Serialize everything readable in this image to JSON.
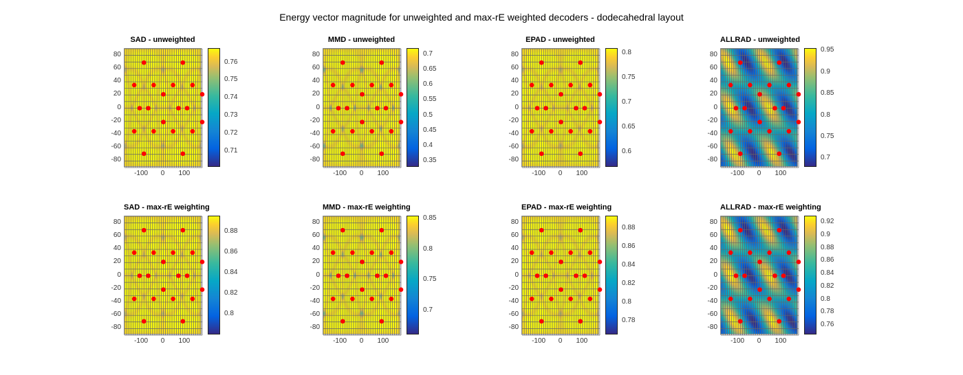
{
  "figure_title": "Energy vector magnitude for unweighted and max-rE weighted decoders - dodecahedral layout",
  "chart_data": [
    {
      "type": "heatmap",
      "title": "SAD - unweighted",
      "clim": [
        0.701,
        0.768
      ],
      "cticks": [
        "0.71",
        "0.72",
        "0.73",
        "0.74",
        "0.75",
        "0.76"
      ],
      "ctick_values": [
        0.71,
        0.72,
        0.73,
        0.74,
        0.75,
        0.76
      ]
    },
    {
      "type": "heatmap",
      "title": "MMD - unweighted",
      "clim": [
        0.33,
        0.72
      ],
      "cticks": [
        "0.35",
        "0.4",
        "0.45",
        "0.5",
        "0.55",
        "0.6",
        "0.65",
        "0.7"
      ],
      "ctick_values": [
        0.35,
        0.4,
        0.45,
        0.5,
        0.55,
        0.6,
        0.65,
        0.7
      ]
    },
    {
      "type": "heatmap",
      "title": "EPAD - unweighted",
      "clim": [
        0.57,
        0.81
      ],
      "cticks": [
        "0.6",
        "0.65",
        "0.7",
        "0.75",
        "0.8"
      ],
      "ctick_values": [
        0.6,
        0.65,
        0.7,
        0.75,
        0.8
      ]
    },
    {
      "type": "heatmap",
      "title": "ALLRAD - unweighted",
      "clim": [
        0.68,
        0.955
      ],
      "cticks": [
        "0.7",
        "0.75",
        "0.8",
        "0.85",
        "0.9",
        "0.95"
      ],
      "ctick_values": [
        0.7,
        0.75,
        0.8,
        0.85,
        0.9,
        0.95
      ]
    },
    {
      "type": "heatmap",
      "title": "SAD - max-rE weighting",
      "clim": [
        0.78,
        0.895
      ],
      "cticks": [
        "0.8",
        "0.82",
        "0.84",
        "0.86",
        "0.88"
      ],
      "ctick_values": [
        0.8,
        0.82,
        0.84,
        0.86,
        0.88
      ]
    },
    {
      "type": "heatmap",
      "title": "MMD - max-rE weighting",
      "clim": [
        0.66,
        0.855
      ],
      "cticks": [
        "0.7",
        "0.75",
        "0.8",
        "0.85"
      ],
      "ctick_values": [
        0.7,
        0.75,
        0.8,
        0.85
      ]
    },
    {
      "type": "heatmap",
      "title": "EPAD - max-rE weighting",
      "clim": [
        0.765,
        0.893
      ],
      "cticks": [
        "0.78",
        "0.8",
        "0.82",
        "0.84",
        "0.86",
        "0.88"
      ],
      "ctick_values": [
        0.78,
        0.8,
        0.82,
        0.84,
        0.86,
        0.88
      ]
    },
    {
      "type": "heatmap",
      "title": "ALLRAD - max-rE weighting",
      "clim": [
        0.745,
        0.93
      ],
      "cticks": [
        "0.76",
        "0.78",
        "0.8",
        "0.82",
        "0.84",
        "0.86",
        "0.88",
        "0.9",
        "0.92"
      ],
      "ctick_values": [
        0.76,
        0.78,
        0.8,
        0.82,
        0.84,
        0.86,
        0.88,
        0.9,
        0.92
      ]
    }
  ],
  "axes": {
    "xlim": [
      -180,
      180
    ],
    "ylim": [
      -90,
      90
    ],
    "xticks": [
      "-100",
      "0",
      "100"
    ],
    "xtick_values": [
      -100,
      0,
      100
    ],
    "yticks": [
      "80",
      "60",
      "40",
      "20",
      "0",
      "-20",
      "-40",
      "-60",
      "-80"
    ],
    "ytick_values": [
      80,
      60,
      40,
      20,
      0,
      -20,
      -40,
      -60,
      -80
    ]
  },
  "speakers": [
    [
      -90,
      69
    ],
    [
      90,
      69
    ],
    [
      -135,
      35
    ],
    [
      -45,
      35
    ],
    [
      45,
      35
    ],
    [
      135,
      35
    ],
    [
      0,
      21
    ],
    [
      180,
      21
    ],
    [
      -110,
      0
    ],
    [
      -70,
      0
    ],
    [
      70,
      0
    ],
    [
      110,
      0
    ],
    [
      0,
      -21
    ],
    [
      180,
      -21
    ],
    [
      -135,
      -35
    ],
    [
      -45,
      -35
    ],
    [
      45,
      -35
    ],
    [
      135,
      -35
    ],
    [
      -90,
      -69
    ],
    [
      90,
      -69
    ]
  ],
  "colors": {
    "speaker": "#ff0000",
    "grid": "#666666"
  }
}
